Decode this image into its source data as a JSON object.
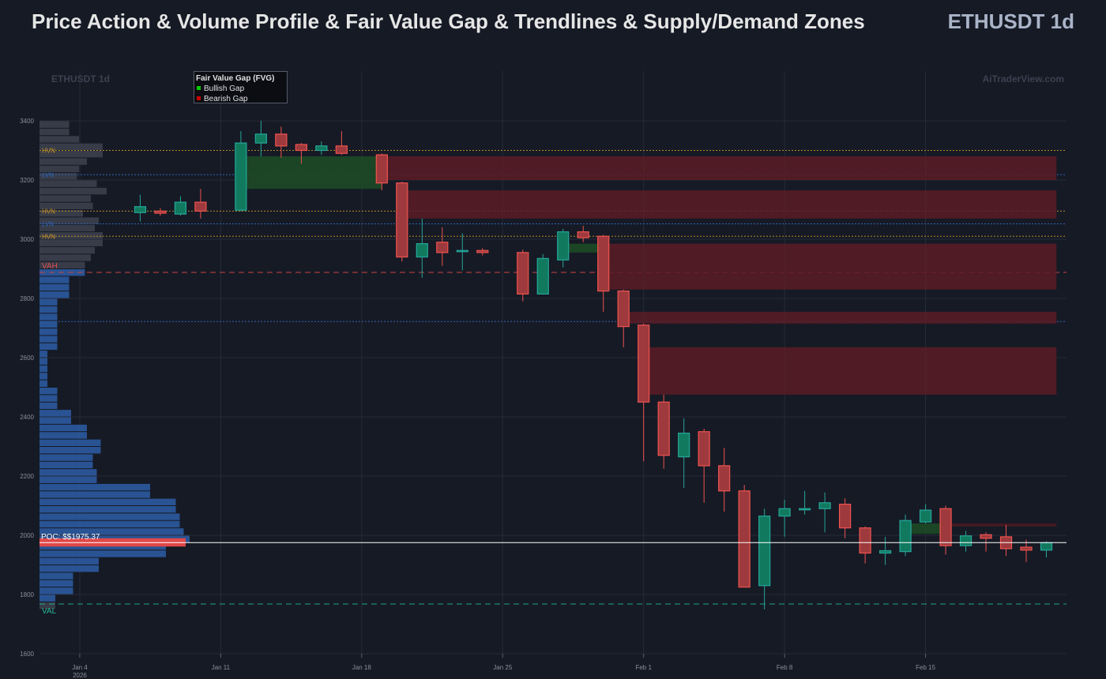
{
  "header": {
    "title": "Price Action & Volume Profile & Fair Value Gap & Trendlines & Supply/Demand Zones",
    "symbol": "ETHUSDT 1d"
  },
  "watermark": {
    "left": "ETHUSDT 1d",
    "right": "AiTraderView.com"
  },
  "legend": {
    "title": "Fair Value Gap (FVG)",
    "items": [
      {
        "label": "Bullish Gap",
        "color": "#00cc00"
      },
      {
        "label": "Bearish Gap",
        "color": "#cc0000"
      }
    ]
  },
  "colors": {
    "background": "#161a25",
    "grid": "#262b38",
    "bull": "#26a69a",
    "bull_fill": "#117a5e",
    "bear": "#ef5350",
    "bear_fill": "#9e3a3d",
    "vp_value_area": "#2a5699",
    "vp_outside": "#3a3e4a",
    "poc": "#e04848",
    "supply_zone": "#5a1c26",
    "demand_zone": "#1c4a26"
  },
  "chart_data": {
    "type": "candlestick",
    "x_ticks": [
      {
        "date": "2026-01-04",
        "label": "Jan 4",
        "sub": "2026"
      },
      {
        "date": "2026-01-11",
        "label": "Jan 11"
      },
      {
        "date": "2026-01-18",
        "label": "Jan 18"
      },
      {
        "date": "2026-01-25",
        "label": "Jan 25"
      },
      {
        "date": "2026-02-01",
        "label": "Feb 1"
      },
      {
        "date": "2026-02-08",
        "label": "Feb 8"
      },
      {
        "date": "2026-02-15",
        "label": "Feb 15"
      }
    ],
    "y_ticks": [
      1600,
      1800,
      2000,
      2200,
      2400,
      2600,
      2800,
      3000,
      3200,
      3400
    ],
    "ylim": [
      1600,
      3400
    ],
    "xlim": [
      "2026-01-02",
      "2026-02-22"
    ],
    "candles": [
      {
        "date": "2026-01-07",
        "o": 3090,
        "h": 3150,
        "l": 3060,
        "c": 3110
      },
      {
        "date": "2026-01-08",
        "o": 3095,
        "h": 3105,
        "l": 3080,
        "c": 3088
      },
      {
        "date": "2026-01-09",
        "o": 3085,
        "h": 3145,
        "l": 3080,
        "c": 3125
      },
      {
        "date": "2026-01-10",
        "o": 3125,
        "h": 3170,
        "l": 3070,
        "c": 3095
      },
      {
        "date": "2026-01-12",
        "o": 3098,
        "h": 3365,
        "l": 3095,
        "c": 3325
      },
      {
        "date": "2026-01-13",
        "o": 3325,
        "h": 3400,
        "l": 3280,
        "c": 3355
      },
      {
        "date": "2026-01-14",
        "o": 3355,
        "h": 3380,
        "l": 3275,
        "c": 3315
      },
      {
        "date": "2026-01-15",
        "o": 3320,
        "h": 3325,
        "l": 3255,
        "c": 3300
      },
      {
        "date": "2026-01-16",
        "o": 3300,
        "h": 3330,
        "l": 3285,
        "c": 3315
      },
      {
        "date": "2026-01-17",
        "o": 3315,
        "h": 3365,
        "l": 3285,
        "c": 3290
      },
      {
        "date": "2026-01-19",
        "o": 3285,
        "h": 3290,
        "l": 3165,
        "c": 3190
      },
      {
        "date": "2026-01-20",
        "o": 3190,
        "h": 3195,
        "l": 2925,
        "c": 2940
      },
      {
        "date": "2026-01-21",
        "o": 2940,
        "h": 3070,
        "l": 2870,
        "c": 2985
      },
      {
        "date": "2026-01-22",
        "o": 2990,
        "h": 3040,
        "l": 2910,
        "c": 2955
      },
      {
        "date": "2026-01-23",
        "o": 2958,
        "h": 3020,
        "l": 2895,
        "c": 2962
      },
      {
        "date": "2026-01-24",
        "o": 2962,
        "h": 2970,
        "l": 2945,
        "c": 2955
      },
      {
        "date": "2026-01-26",
        "o": 2955,
        "h": 2965,
        "l": 2790,
        "c": 2815
      },
      {
        "date": "2026-01-27",
        "o": 2815,
        "h": 2950,
        "l": 2815,
        "c": 2935
      },
      {
        "date": "2026-01-28",
        "o": 2930,
        "h": 3035,
        "l": 2905,
        "c": 3025
      },
      {
        "date": "2026-01-29",
        "o": 3025,
        "h": 3045,
        "l": 2990,
        "c": 3005
      },
      {
        "date": "2026-01-30",
        "o": 3010,
        "h": 3015,
        "l": 2755,
        "c": 2825
      },
      {
        "date": "2026-01-31",
        "o": 2825,
        "h": 2830,
        "l": 2635,
        "c": 2705
      },
      {
        "date": "2026-02-01",
        "o": 2710,
        "h": 2715,
        "l": 2250,
        "c": 2450
      },
      {
        "date": "2026-02-02",
        "o": 2450,
        "h": 2475,
        "l": 2225,
        "c": 2270
      },
      {
        "date": "2026-02-03",
        "o": 2265,
        "h": 2395,
        "l": 2160,
        "c": 2345
      },
      {
        "date": "2026-02-04",
        "o": 2350,
        "h": 2360,
        "l": 2110,
        "c": 2235
      },
      {
        "date": "2026-02-05",
        "o": 2235,
        "h": 2295,
        "l": 2080,
        "c": 2150
      },
      {
        "date": "2026-02-06",
        "o": 2150,
        "h": 2170,
        "l": 1825,
        "c": 1825
      },
      {
        "date": "2026-02-07",
        "o": 1830,
        "h": 2090,
        "l": 1750,
        "c": 2065
      },
      {
        "date": "2026-02-08",
        "o": 2065,
        "h": 2120,
        "l": 1995,
        "c": 2090
      },
      {
        "date": "2026-02-09",
        "o": 2088,
        "h": 2150,
        "l": 2070,
        "c": 2090
      },
      {
        "date": "2026-02-10",
        "o": 2090,
        "h": 2145,
        "l": 2010,
        "c": 2110
      },
      {
        "date": "2026-02-11",
        "o": 2105,
        "h": 2125,
        "l": 1990,
        "c": 2025
      },
      {
        "date": "2026-02-12",
        "o": 2025,
        "h": 2030,
        "l": 1905,
        "c": 1940
      },
      {
        "date": "2026-02-13",
        "o": 1940,
        "h": 1995,
        "l": 1900,
        "c": 1948
      },
      {
        "date": "2026-02-14",
        "o": 1945,
        "h": 2070,
        "l": 1930,
        "c": 2050
      },
      {
        "date": "2026-02-15",
        "o": 2045,
        "h": 2105,
        "l": 2040,
        "c": 2085
      },
      {
        "date": "2026-02-16",
        "o": 2090,
        "h": 2100,
        "l": 1935,
        "c": 1965
      },
      {
        "date": "2026-02-17",
        "o": 1965,
        "h": 2015,
        "l": 1945,
        "c": 1998
      },
      {
        "date": "2026-02-18",
        "o": 2002,
        "h": 2010,
        "l": 1945,
        "c": 1990
      },
      {
        "date": "2026-02-19",
        "o": 1995,
        "h": 2035,
        "l": 1930,
        "c": 1955
      },
      {
        "date": "2026-02-20",
        "o": 1960,
        "h": 1985,
        "l": 1910,
        "c": 1950
      },
      {
        "date": "2026-02-21",
        "o": 1950,
        "h": 1980,
        "l": 1925,
        "c": 1975
      }
    ],
    "supply_zones": [
      {
        "from": "2026-01-19",
        "to": "2026-02-21",
        "low": 3200,
        "high": 3280
      },
      {
        "from": "2026-01-20",
        "to": "2026-02-21",
        "low": 3070,
        "high": 3165
      },
      {
        "from": "2026-01-30",
        "to": "2026-02-21",
        "low": 2830,
        "high": 2985
      },
      {
        "from": "2026-01-31",
        "to": "2026-02-21",
        "low": 2715,
        "high": 2755
      },
      {
        "from": "2026-02-01",
        "to": "2026-02-21",
        "low": 2475,
        "high": 2635
      }
    ],
    "fvg_bullish": [
      {
        "from": "2026-01-12",
        "to": "2026-01-19",
        "low": 3170,
        "high": 3280
      },
      {
        "from": "2026-01-28",
        "to": "2026-01-30",
        "low": 2955,
        "high": 2985
      },
      {
        "from": "2026-02-14",
        "to": "2026-02-16",
        "low": 2005,
        "high": 2040
      }
    ],
    "fvg_bearish": [
      {
        "from": "2026-02-16",
        "to": "2026-02-21",
        "low": 2030,
        "high": 2040
      }
    ],
    "levels": [
      {
        "label": "HVN",
        "price": 3300,
        "kind": "hvn"
      },
      {
        "label": "LVN",
        "price": 3218,
        "kind": "lvn"
      },
      {
        "label": "HVN",
        "price": 3095,
        "kind": "hvn"
      },
      {
        "label": "LVN",
        "price": 3052,
        "kind": "lvn"
      },
      {
        "label": "HVN",
        "price": 3010,
        "kind": "hvn"
      },
      {
        "label": "VAH",
        "price": 2888,
        "kind": "vah"
      },
      {
        "label": "",
        "price": 2722,
        "kind": "lvn"
      },
      {
        "label": "VAL",
        "price": 1768,
        "kind": "val"
      }
    ],
    "poc": {
      "label": "POC: $$1975.37",
      "price": 1975.37
    },
    "volume_profile": {
      "bin_size": 25,
      "bins": [
        [
          3375,
          15
        ],
        [
          3350,
          15
        ],
        [
          3325,
          20
        ],
        [
          3300,
          32
        ],
        [
          3275,
          32
        ],
        [
          3250,
          24
        ],
        [
          3225,
          20
        ],
        [
          3200,
          19
        ],
        [
          3175,
          29
        ],
        [
          3150,
          34
        ],
        [
          3125,
          26
        ],
        [
          3100,
          27
        ],
        [
          3075,
          22
        ],
        [
          3050,
          30
        ],
        [
          3025,
          28
        ],
        [
          3000,
          32
        ],
        [
          2975,
          32
        ],
        [
          2950,
          28
        ],
        [
          2925,
          26
        ],
        [
          2900,
          23
        ],
        [
          2875,
          23
        ],
        [
          2850,
          15
        ],
        [
          2825,
          15
        ],
        [
          2800,
          15
        ],
        [
          2775,
          9
        ],
        [
          2750,
          9
        ],
        [
          2725,
          9
        ],
        [
          2700,
          9
        ],
        [
          2675,
          9
        ],
        [
          2650,
          9
        ],
        [
          2625,
          9
        ],
        [
          2600,
          4
        ],
        [
          2575,
          4
        ],
        [
          2550,
          4
        ],
        [
          2525,
          4
        ],
        [
          2500,
          4
        ],
        [
          2475,
          9
        ],
        [
          2450,
          9
        ],
        [
          2425,
          9
        ],
        [
          2400,
          16
        ],
        [
          2375,
          16
        ],
        [
          2350,
          24
        ],
        [
          2325,
          24
        ],
        [
          2300,
          31
        ],
        [
          2275,
          31
        ],
        [
          2250,
          27
        ],
        [
          2225,
          27
        ],
        [
          2200,
          29
        ],
        [
          2175,
          29
        ],
        [
          2150,
          56
        ],
        [
          2125,
          56
        ],
        [
          2100,
          69
        ],
        [
          2075,
          69
        ],
        [
          2050,
          71
        ],
        [
          2025,
          71
        ],
        [
          2000,
          73
        ],
        [
          1975,
          76
        ],
        [
          1950,
          64
        ],
        [
          1925,
          64
        ],
        [
          1900,
          30
        ],
        [
          1875,
          30
        ],
        [
          1850,
          17
        ],
        [
          1825,
          17
        ],
        [
          1800,
          17
        ],
        [
          1775,
          8
        ],
        [
          1750,
          8
        ]
      ],
      "value_area": [
        1768,
        2888
      ]
    }
  }
}
